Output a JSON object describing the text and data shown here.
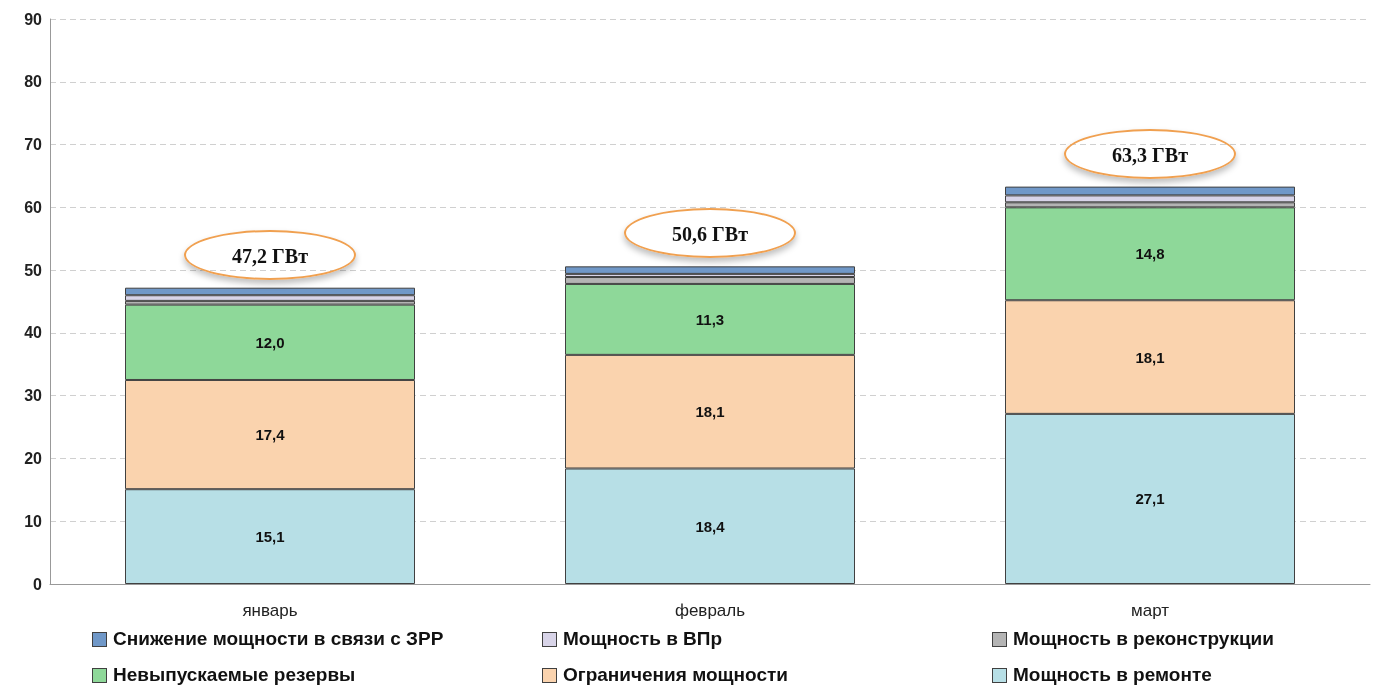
{
  "chart_data": {
    "type": "bar",
    "stacked": true,
    "categories": [
      "январь",
      "февраль",
      "март"
    ],
    "series": [
      {
        "name": "Мощность в ремонте",
        "color": "#b7dfe6",
        "values": [
          15.1,
          18.4,
          27.1
        ],
        "value_labels": [
          "15,1",
          "18,4",
          "27,1"
        ]
      },
      {
        "name": "Ограничения мощности",
        "color": "#fad3ae",
        "values": [
          17.4,
          18.1,
          18.1
        ],
        "value_labels": [
          "17,4",
          "18,1",
          "18,1"
        ]
      },
      {
        "name": "Невыпускаемые резервы",
        "color": "#8ed899",
        "values": [
          12.0,
          11.3,
          14.8
        ],
        "value_labels": [
          "12,0",
          "11,3",
          "14,8"
        ]
      },
      {
        "name": "Мощность в реконструкции",
        "color": "#b4b4b4",
        "values": [
          0.6,
          1.1,
          0.8
        ]
      },
      {
        "name": "Мощность в ВПр",
        "color": "#d8d4e8",
        "values": [
          0.9,
          0.5,
          1.1
        ]
      },
      {
        "name": "Снижение мощности в связи с ЗРР",
        "color": "#7098c8",
        "values": [
          1.2,
          1.2,
          1.4
        ]
      }
    ],
    "totals": [
      "47,2 ГВт",
      "50,6 ГВт",
      "63,3 ГВт"
    ],
    "ylim": [
      0,
      90
    ],
    "yticks": [
      0,
      10,
      20,
      30,
      40,
      50,
      60,
      70,
      80,
      90
    ],
    "grid": "y",
    "legend": "bottom"
  }
}
